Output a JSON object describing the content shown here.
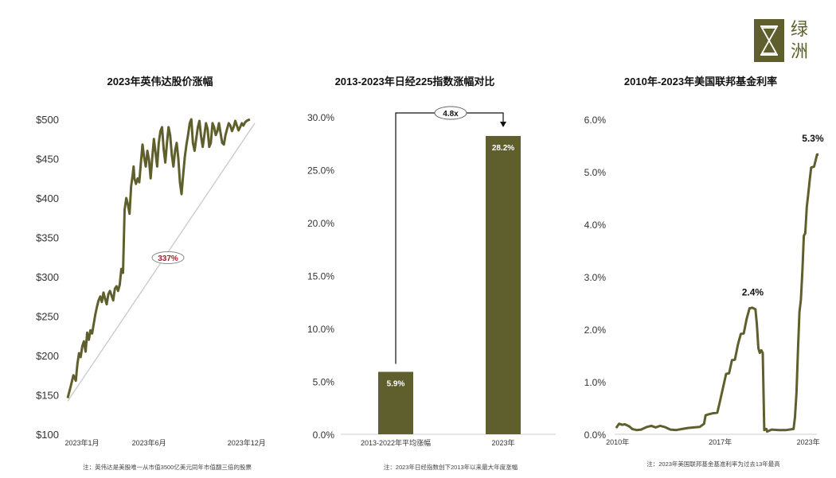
{
  "logo": {
    "char1": "绿",
    "char2": "洲"
  },
  "chart_data": [
    {
      "type": "line",
      "title": "2023年英伟达股价涨幅",
      "y_ticks": [
        "$100",
        "$150",
        "$200",
        "$250",
        "$300",
        "$350",
        "$400",
        "$450",
        "$500"
      ],
      "y_tick_values": [
        100,
        150,
        200,
        250,
        300,
        350,
        400,
        450,
        500
      ],
      "ylim": [
        100,
        500
      ],
      "x_ticks": [
        "2023年1月",
        "2023年6月",
        "2023年12月"
      ],
      "x_tick_positions": [
        0,
        5,
        11
      ],
      "xlim": [
        0,
        11.5
      ],
      "series": [
        {
          "color": "#5f5f2d",
          "x": [
            0,
            0.2,
            0.35,
            0.5,
            0.6,
            0.7,
            0.8,
            0.9,
            1.0,
            1.1,
            1.2,
            1.3,
            1.4,
            1.5,
            1.6,
            1.7,
            1.8,
            1.9,
            2.0,
            2.1,
            2.2,
            2.3,
            2.4,
            2.5,
            2.6,
            2.7,
            2.8,
            2.9,
            3.0,
            3.1,
            3.2,
            3.3,
            3.4,
            3.5,
            3.6,
            3.7,
            3.8,
            3.9,
            4.0,
            4.05,
            4.1,
            4.2,
            4.3,
            4.4,
            4.5,
            4.6,
            4.7,
            4.8,
            4.9,
            5.0,
            5.1,
            5.2,
            5.3,
            5.4,
            5.5,
            5.6,
            5.7,
            5.8,
            5.9,
            6.0,
            6.1,
            6.2,
            6.3,
            6.4,
            6.5,
            6.6,
            6.7,
            6.8,
            6.9,
            7.0,
            7.1,
            7.2,
            7.3,
            7.4,
            7.5,
            7.6,
            7.7,
            7.8,
            7.9,
            8.0,
            8.1,
            8.2,
            8.3,
            8.4,
            8.5,
            8.6,
            8.7,
            8.8,
            8.9,
            9.0,
            9.1,
            9.2,
            9.3,
            9.4,
            9.5,
            9.6,
            9.7,
            9.8,
            9.9,
            10.0,
            10.1,
            10.2,
            10.3,
            10.4,
            10.5,
            10.6,
            10.7,
            10.8,
            10.9,
            11.0,
            11.1,
            11.2
          ],
          "values": [
            146,
            162,
            175,
            168,
            190,
            203,
            198,
            212,
            218,
            205,
            229,
            220,
            232,
            228,
            240,
            252,
            262,
            270,
            275,
            268,
            280,
            272,
            265,
            278,
            282,
            276,
            270,
            285,
            288,
            282,
            290,
            310,
            305,
            385,
            400,
            392,
            380,
            415,
            430,
            440,
            425,
            418,
            425,
            420,
            445,
            468,
            452,
            440,
            460,
            448,
            425,
            452,
            475,
            458,
            440,
            470,
            485,
            490,
            462,
            445,
            470,
            490,
            480,
            455,
            440,
            460,
            470,
            450,
            420,
            405,
            430,
            452,
            468,
            480,
            495,
            500,
            470,
            460,
            475,
            490,
            498,
            478,
            465,
            480,
            495,
            488,
            465,
            470,
            495,
            490,
            480,
            485,
            495,
            482,
            470,
            468,
            480,
            488,
            495,
            492,
            485,
            490,
            498,
            492,
            486,
            490,
            495,
            492,
            496,
            498,
            499,
            500
          ],
          "trend_start": [
            0,
            142
          ],
          "trend_end": [
            11.5,
            495
          ]
        }
      ],
      "annotation": "337%",
      "footnote": "注：英伟达是美股唯一从市值3500亿美元同年市值翻三倍的股票"
    },
    {
      "type": "bar",
      "title": "2013-2023年日经225指数涨幅对比",
      "categories": [
        "2013-2022年平均涨幅",
        "2023年"
      ],
      "values": [
        5.9,
        28.2
      ],
      "value_labels": [
        "5.9%",
        "28.2%"
      ],
      "y_ticks": [
        "0.0%",
        "5.0%",
        "10.0%",
        "15.0%",
        "20.0%",
        "25.0%",
        "30.0%"
      ],
      "y_tick_values": [
        0,
        5,
        10,
        15,
        20,
        25,
        30
      ],
      "ylim": [
        0,
        30
      ],
      "bar_color": "#5f5f2d",
      "annotation": "4.8x",
      "footnote": "注：2023年日经指数创下2013年以来最大年度涨幅"
    },
    {
      "type": "line",
      "title": "2010年-2023年美国联邦基金利率",
      "y_ticks": [
        "0.0%",
        "1.0%",
        "2.0%",
        "3.0%",
        "4.0%",
        "5.0%",
        "6.0%"
      ],
      "y_tick_values": [
        0,
        1,
        2,
        3,
        4,
        5,
        6
      ],
      "ylim": [
        0,
        6
      ],
      "x_ticks": [
        "2010年",
        "2017年",
        "2023年"
      ],
      "x_tick_positions": [
        2010,
        2017,
        2023
      ],
      "xlim": [
        2009.8,
        2023.7
      ],
      "series": [
        {
          "color": "#5f5f2d",
          "x": [
            2009.9,
            2010.1,
            2010.3,
            2010.5,
            2010.8,
            2011.0,
            2011.3,
            2011.6,
            2012.0,
            2012.3,
            2012.6,
            2012.9,
            2013.2,
            2013.6,
            2014.0,
            2014.4,
            2014.8,
            2015.2,
            2015.6,
            2015.9,
            2016.0,
            2016.2,
            2016.5,
            2016.8,
            2017.0,
            2017.2,
            2017.4,
            2017.6,
            2017.8,
            2018.0,
            2018.2,
            2018.4,
            2018.6,
            2018.8,
            2019.0,
            2019.2,
            2019.4,
            2019.5,
            2019.6,
            2019.7,
            2019.8,
            2019.9,
            2020.0,
            2020.1,
            2020.15,
            2020.2,
            2020.5,
            2021.0,
            2021.5,
            2022.0,
            2022.1,
            2022.2,
            2022.3,
            2022.4,
            2022.5,
            2022.6,
            2022.7,
            2022.8,
            2022.9,
            2023.0,
            2023.1,
            2023.2,
            2023.4,
            2023.6,
            2023.7
          ],
          "values": [
            0.12,
            0.2,
            0.18,
            0.19,
            0.15,
            0.1,
            0.08,
            0.09,
            0.14,
            0.16,
            0.13,
            0.16,
            0.14,
            0.09,
            0.08,
            0.1,
            0.12,
            0.13,
            0.14,
            0.2,
            0.36,
            0.38,
            0.4,
            0.41,
            0.65,
            0.9,
            1.15,
            1.16,
            1.41,
            1.42,
            1.7,
            1.91,
            1.92,
            2.2,
            2.4,
            2.41,
            2.38,
            2.1,
            1.64,
            1.55,
            1.6,
            1.55,
            0.08,
            0.1,
            0.1,
            0.05,
            0.09,
            0.08,
            0.08,
            0.1,
            0.33,
            0.8,
            1.58,
            2.33,
            2.56,
            3.08,
            3.78,
            3.83,
            4.33,
            4.57,
            4.83,
            5.08,
            5.1,
            5.33,
            5.33
          ]
        }
      ],
      "annotations": [
        {
          "label": "2.4%",
          "x": 2019.0,
          "y": 2.4
        },
        {
          "label": "5.3%",
          "x": 2023.1,
          "y": 5.33
        }
      ],
      "footnote": "注：2023年美国联邦基金基准利率为过去13年最高"
    }
  ]
}
